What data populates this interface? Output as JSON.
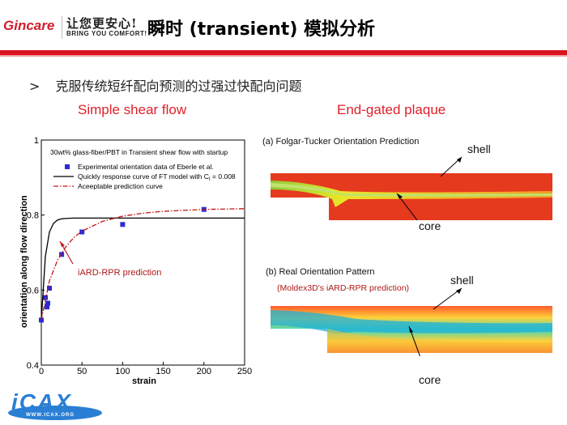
{
  "header": {
    "brand": "Gincare",
    "slogan_cn": "让您更安心!",
    "slogan_en": "BRING YOU COMFORT!",
    "title": "瞬时 (transient) 模拟分析"
  },
  "bullet": {
    "marker": ">",
    "text": "克服传统短纤配向预测的过强过快配向问题"
  },
  "sections": {
    "left_title": "Simple shear flow",
    "right_title": "End-gated plaque"
  },
  "plot": {
    "inner_title": "30wt% glass-fiber/PBT in Transient shear flow with startup",
    "legend": [
      "Experimental orientation data of  Eberle et al.",
      "Quickly response curve of FT model with C",
      "Aceeptable prediction curve"
    ],
    "legend_ci_sub": "I",
    "legend_ci_value": " = 0.008",
    "annotation": "iARD-RPR prediction",
    "xlabel": "strain",
    "ylabel": "orientation along flow direction"
  },
  "chart_data": {
    "type": "scatter",
    "title": "30wt% glass-fiber/PBT in Transient shear flow with startup",
    "xlabel": "strain",
    "ylabel": "orientation along flow direction",
    "xlim": [
      0,
      250
    ],
    "ylim": [
      0.4,
      1
    ],
    "xticks": [
      "0",
      "50",
      "100",
      "150",
      "200",
      "250"
    ],
    "yticks": [
      "0.4",
      "0.6",
      "0.8",
      "1"
    ],
    "series": [
      {
        "name": "Experimental orientation data of  Eberle et al.",
        "kind": "markers",
        "color": "#2b2bd6",
        "x": [
          0,
          5,
          7,
          8,
          10,
          25,
          50,
          100,
          200
        ],
        "y": [
          0.52,
          0.58,
          0.555,
          0.565,
          0.605,
          0.695,
          0.755,
          0.775,
          0.815
        ]
      },
      {
        "name": "Quickly response curve of FT model with C = 0.008",
        "kind": "line",
        "color": "#000000",
        "x": [
          0,
          5,
          10,
          15,
          20,
          25,
          30,
          40,
          50,
          75,
          100,
          150,
          200,
          250
        ],
        "y": [
          0.52,
          0.69,
          0.755,
          0.778,
          0.787,
          0.79,
          0.791,
          0.792,
          0.792,
          0.792,
          0.792,
          0.792,
          0.792,
          0.792
        ]
      },
      {
        "name": "Aceeptable prediction curve",
        "kind": "dashdot",
        "color": "#c01818",
        "x": [
          0,
          10,
          20,
          30,
          40,
          50,
          75,
          100,
          125,
          150,
          200,
          250
        ],
        "y": [
          0.52,
          0.625,
          0.68,
          0.715,
          0.74,
          0.757,
          0.783,
          0.797,
          0.805,
          0.81,
          0.815,
          0.817
        ]
      }
    ]
  },
  "right_panels": {
    "a_caption": "(a) Folgar-Tucker Orientation Prediction",
    "b_caption": "(b) Real Orientation Pattern",
    "b_subcaption": "(Moldex3D's iARD-RPR prediction)",
    "shell": "shell",
    "core": "core"
  },
  "footer": {
    "logo_text": "iCAX",
    "logo_url_text": "WWW.ICAX.ORG"
  },
  "colors": {
    "accent_red": "#d9131f",
    "section_red": "#e0202a",
    "marker_blue": "#2b2bd6"
  }
}
